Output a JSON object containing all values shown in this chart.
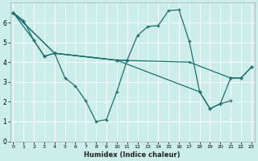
{
  "xlabel": "Humidex (Indice chaleur)",
  "bg_color": "#cceee8",
  "grid_color": "#ffffff",
  "line_color": "#1a7070",
  "xlim": [
    0,
    23
  ],
  "ylim": [
    0,
    7
  ],
  "xtick_labels": [
    "0",
    "1",
    "2",
    "3",
    "4",
    "5",
    "6",
    "7",
    "8",
    "9",
    "10",
    "11",
    "12",
    "13",
    "14",
    "15",
    "16",
    "17",
    "18",
    "19",
    "20",
    "21",
    "22",
    "23"
  ],
  "ytick_labels": [
    "0",
    "1",
    "2",
    "3",
    "4",
    "5",
    "6"
  ],
  "line_a_x": [
    0,
    1,
    2,
    3,
    4,
    5,
    6,
    7,
    8,
    9,
    10,
    11
  ],
  "line_a_y": [
    6.5,
    6.1,
    5.1,
    4.3,
    4.45,
    3.2,
    2.8,
    2.05,
    1.0,
    1.1,
    2.5,
    4.1
  ],
  "line_b_x": [
    0,
    2,
    3,
    4,
    10,
    11,
    12,
    13,
    14,
    15,
    16,
    17,
    18,
    19,
    20,
    21
  ],
  "line_b_y": [
    6.5,
    5.1,
    4.3,
    4.45,
    4.1,
    4.1,
    5.35,
    5.8,
    5.85,
    6.6,
    6.65,
    5.05,
    2.5,
    1.65,
    1.9,
    2.05
  ],
  "line_c_x": [
    0,
    4,
    10,
    18,
    19,
    20,
    21,
    22,
    23
  ],
  "line_c_y": [
    6.5,
    4.45,
    4.1,
    2.5,
    1.65,
    1.9,
    3.2,
    3.2,
    3.75
  ],
  "line_d_x": [
    0,
    4,
    10,
    17,
    21,
    22,
    23
  ],
  "line_d_y": [
    6.5,
    4.45,
    4.1,
    4.0,
    3.2,
    3.2,
    3.75
  ]
}
